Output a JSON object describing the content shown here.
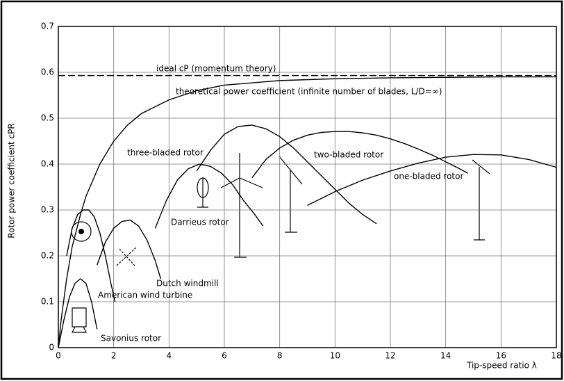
{
  "chart_data": {
    "type": "line",
    "y_label": "Rotor power coefficient cPR",
    "x_label": "Tip-speed ratio λ",
    "xlim": [
      0,
      18
    ],
    "ylim": [
      0,
      0.7
    ],
    "xticks": [
      0,
      2,
      4,
      6,
      8,
      10,
      12,
      14,
      16,
      18
    ],
    "yticks": [
      0,
      0.1,
      0.2,
      0.3,
      0.4,
      0.5,
      0.6,
      0.7
    ],
    "grid": true,
    "color": "#000000",
    "series": [
      {
        "name": "ideal cP (momentum theory)",
        "dashed": true,
        "x": [
          0,
          18
        ],
        "values": [
          0.593,
          0.593
        ]
      },
      {
        "name": "theoretical power coefficient (infinite number of blades, L/D=∞)",
        "x": [
          0,
          0.1,
          0.3,
          0.5,
          0.8,
          1,
          1.5,
          2,
          2.5,
          3,
          4,
          5,
          6,
          8,
          10,
          12,
          14,
          16,
          18
        ],
        "values": [
          0,
          0.06,
          0.15,
          0.22,
          0.29,
          0.33,
          0.4,
          0.45,
          0.485,
          0.51,
          0.54,
          0.56,
          0.572,
          0.582,
          0.586,
          0.588,
          0.589,
          0.59,
          0.59
        ]
      },
      {
        "name": "three-bladed rotor",
        "x": [
          5.0,
          5.5,
          6.0,
          6.5,
          7.0,
          7.5,
          8.0,
          8.5,
          9.0,
          9.5,
          10.0,
          10.5,
          11.0,
          11.5
        ],
        "values": [
          0.385,
          0.43,
          0.465,
          0.482,
          0.485,
          0.477,
          0.46,
          0.435,
          0.405,
          0.375,
          0.345,
          0.315,
          0.29,
          0.27
        ]
      },
      {
        "name": "two-bladed rotor",
        "x": [
          7.0,
          7.5,
          8.0,
          8.5,
          9,
          9.5,
          10,
          10.5,
          11,
          11.5,
          12,
          12.5,
          13,
          13.5,
          14,
          14.5,
          14.8
        ],
        "values": [
          0.37,
          0.41,
          0.435,
          0.452,
          0.463,
          0.469,
          0.471,
          0.471,
          0.468,
          0.463,
          0.455,
          0.445,
          0.433,
          0.42,
          0.405,
          0.39,
          0.38
        ]
      },
      {
        "name": "one-bladed rotor",
        "x": [
          9,
          10,
          11,
          12,
          13,
          14,
          15,
          16,
          17,
          18
        ],
        "values": [
          0.31,
          0.34,
          0.365,
          0.385,
          0.402,
          0.415,
          0.421,
          0.42,
          0.41,
          0.393
        ]
      },
      {
        "name": "Darrieus rotor",
        "x": [
          3.5,
          3.9,
          4.3,
          4.7,
          5.1,
          5.5,
          5.9,
          6.3,
          6.7,
          7.1,
          7.4
        ],
        "values": [
          0.26,
          0.32,
          0.365,
          0.39,
          0.4,
          0.395,
          0.38,
          0.355,
          0.32,
          0.29,
          0.265
        ]
      },
      {
        "name": "Dutch windmill",
        "x": [
          1.4,
          1.7,
          2.0,
          2.3,
          2.6,
          2.9,
          3.2,
          3.5,
          3.7
        ],
        "values": [
          0.18,
          0.23,
          0.26,
          0.275,
          0.278,
          0.265,
          0.235,
          0.19,
          0.15
        ]
      },
      {
        "name": "American wind turbine",
        "x": [
          0.3,
          0.5,
          0.7,
          0.9,
          1.1,
          1.3,
          1.5,
          1.7,
          1.9,
          2.05
        ],
        "values": [
          0.2,
          0.26,
          0.29,
          0.3,
          0.3,
          0.285,
          0.25,
          0.2,
          0.14,
          0.1
        ]
      },
      {
        "name": "Savonius rotor",
        "x": [
          0,
          0.2,
          0.4,
          0.6,
          0.8,
          1.0,
          1.2,
          1.4
        ],
        "values": [
          0,
          0.06,
          0.11,
          0.14,
          0.15,
          0.14,
          0.1,
          0.04
        ]
      }
    ]
  }
}
